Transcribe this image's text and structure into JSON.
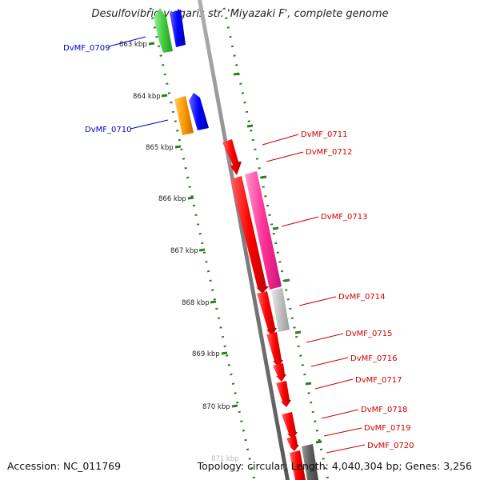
{
  "title": "Desulfovibrio vulgaris str. 'Miyazaki F', complete genome",
  "footer": {
    "accession": "Accession: NC_011769",
    "topology": "Topology: circular; Length: 4,040,304 bp; Genes: 3,256"
  },
  "colors": {
    "backbone": "#808080",
    "tick": "#2e7d1f",
    "reverse_label": "#0000cc",
    "forward_label": "#cc0000",
    "green_gene": "#33cc33",
    "blue_gene": "#0000ff",
    "orange_gene": "#ff9900",
    "red_gene": "#ff0000",
    "magenta_gene": "#ff3399",
    "light_gray_gene": "#c0c0c0",
    "dark_gray_gene": "#606060"
  },
  "scale_labels": [
    {
      "kbp": 863,
      "label": "863 kbp"
    },
    {
      "kbp": 864,
      "label": "864 kbp"
    },
    {
      "kbp": 865,
      "label": "865 kbp"
    },
    {
      "kbp": 866,
      "label": "866 kbp"
    },
    {
      "kbp": 867,
      "label": "867 kbp"
    },
    {
      "kbp": 868,
      "label": "868 kbp"
    },
    {
      "kbp": 869,
      "label": "869 kbp"
    },
    {
      "kbp": 870,
      "label": "870 kbp"
    },
    {
      "kbp": 871,
      "label": "871 kbp"
    }
  ],
  "gene_labels": [
    {
      "id": "DvMF_0709",
      "strand": "reverse"
    },
    {
      "id": "DvMF_0710",
      "strand": "reverse"
    },
    {
      "id": "DvMF_0711",
      "strand": "forward"
    },
    {
      "id": "DvMF_0712",
      "strand": "forward"
    },
    {
      "id": "DvMF_0713",
      "strand": "forward"
    },
    {
      "id": "DvMF_0714",
      "strand": "forward"
    },
    {
      "id": "DvMF_0715",
      "strand": "forward"
    },
    {
      "id": "DvMF_0716",
      "strand": "forward"
    },
    {
      "id": "DvMF_0717",
      "strand": "forward"
    },
    {
      "id": "DvMF_0718",
      "strand": "forward"
    },
    {
      "id": "DvMF_0719",
      "strand": "forward"
    },
    {
      "id": "DvMF_0720",
      "strand": "forward"
    }
  ]
}
